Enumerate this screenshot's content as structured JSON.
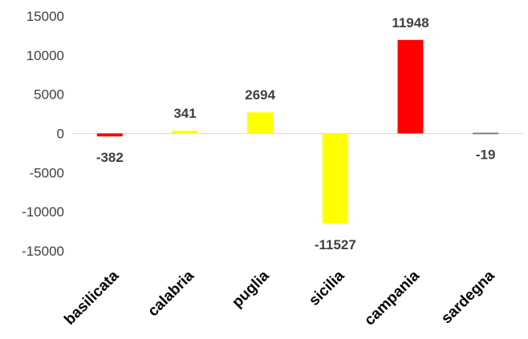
{
  "chart_data": {
    "type": "bar",
    "categories": [
      "basilicata",
      "calabria",
      "puglia",
      "sicilia",
      "campania",
      "sardegna"
    ],
    "values": [
      -382,
      341,
      2694,
      -11527,
      11948,
      -19
    ],
    "bar_colors": [
      "#ff0000",
      "#ffff00",
      "#ffff00",
      "#ffff00",
      "#ff0000",
      "#7f7f7f"
    ],
    "ylim": [
      -15000,
      15000
    ],
    "yticks": [
      15000,
      10000,
      5000,
      0,
      -5000,
      -10000,
      -15000
    ],
    "ytick_labels": [
      "15000",
      "10000",
      "5000",
      "0",
      "-5000",
      "-10000",
      "-15000"
    ],
    "grid": false,
    "legend": "none",
    "title": "",
    "xlabel": "",
    "ylabel": ""
  }
}
